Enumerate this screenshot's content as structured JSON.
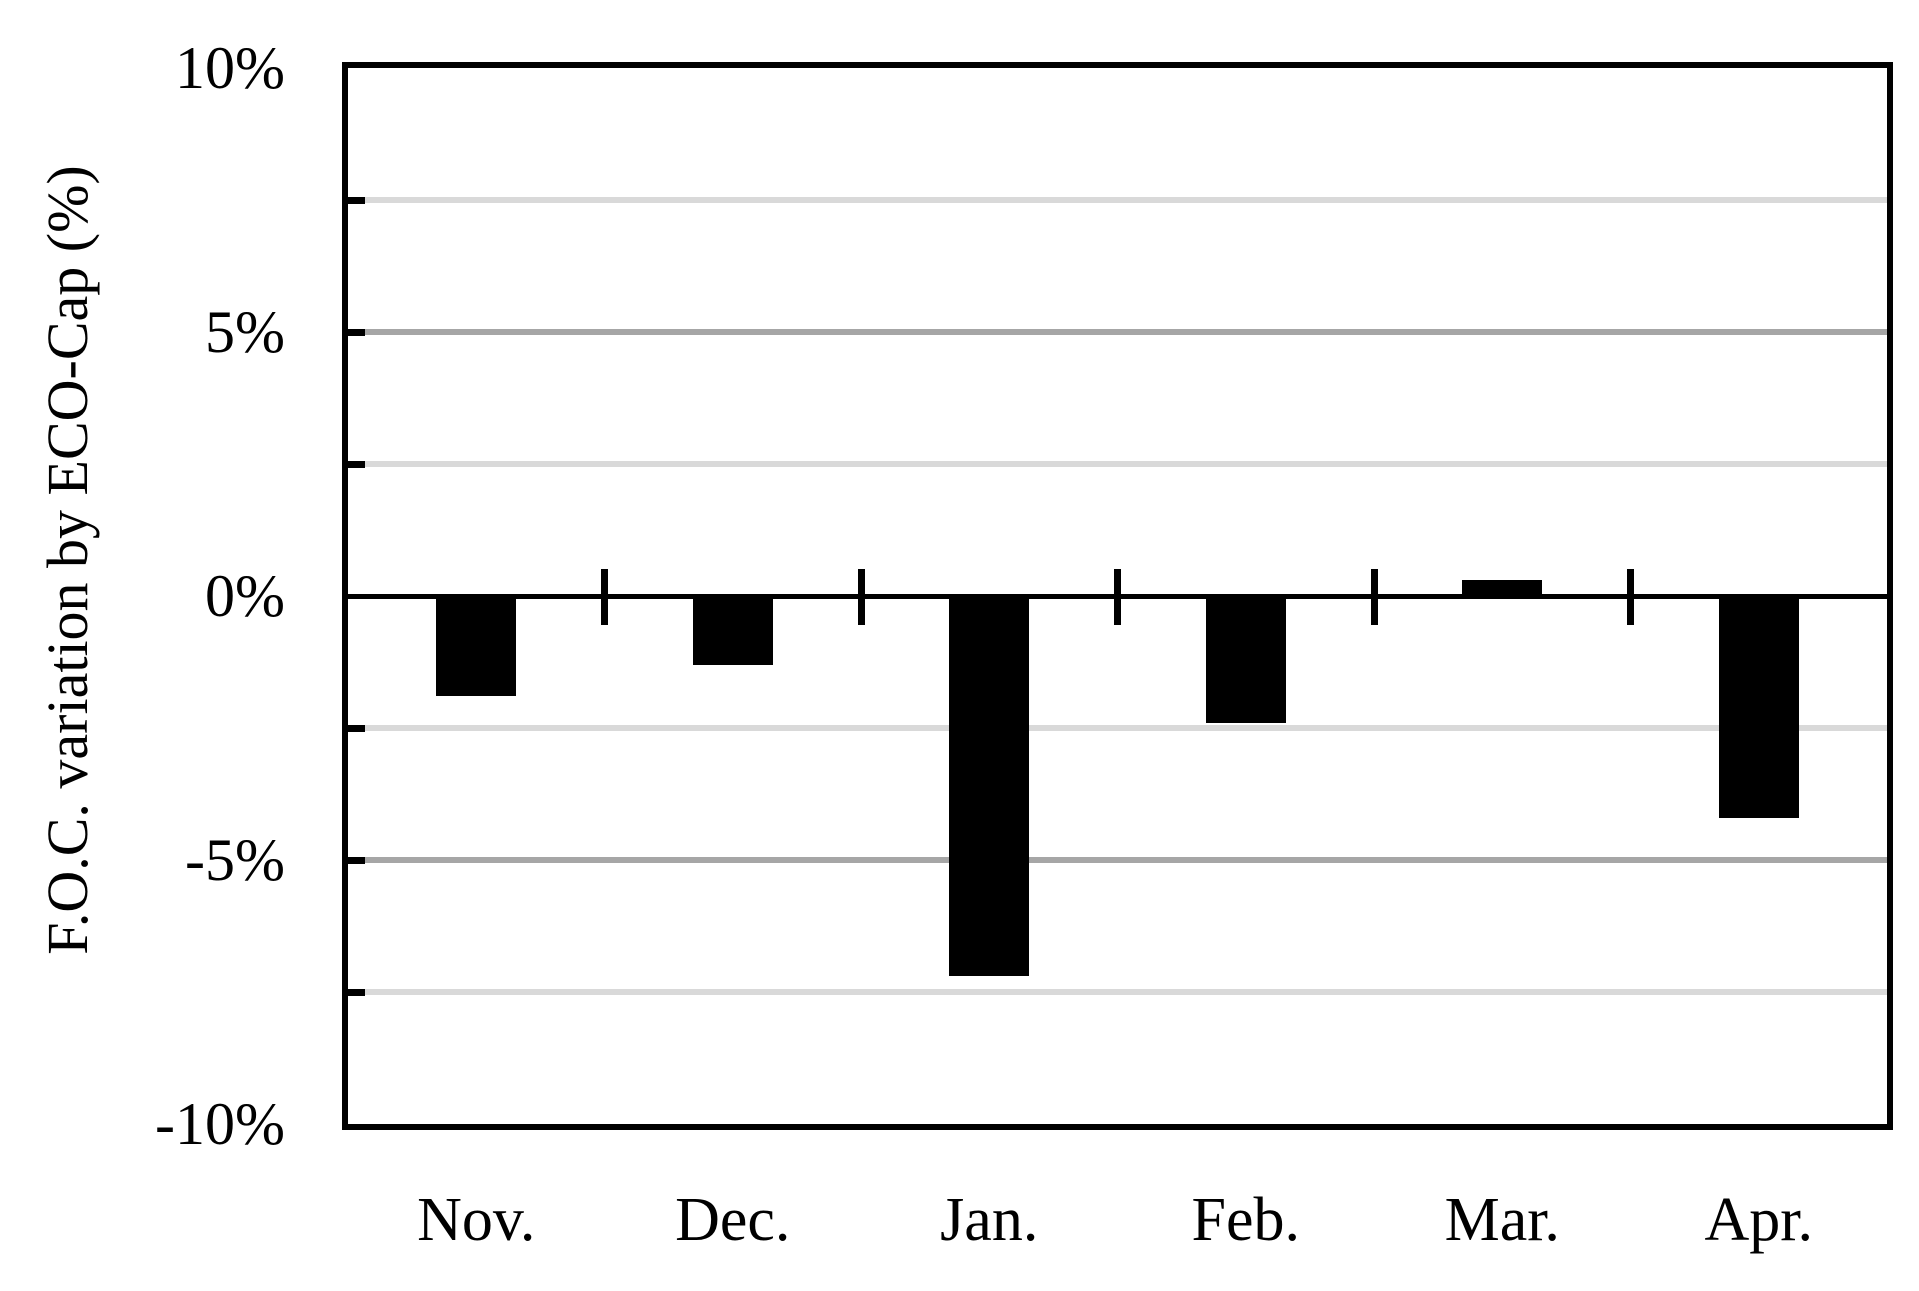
{
  "chart_data": {
    "type": "bar",
    "categories": [
      "Nov.",
      "Dec.",
      "Jan.",
      "Feb.",
      "Mar.",
      "Apr."
    ],
    "values": [
      -1.9,
      -1.3,
      -7.2,
      -2.4,
      0.3,
      -4.2
    ],
    "title": "",
    "xlabel": "",
    "ylabel": "F.O.C. variation by ECO-Cap (%)",
    "ylim": [
      -10,
      10
    ],
    "yticks": [
      {
        "value": 10,
        "label": "10%"
      },
      {
        "value": 5,
        "label": "5%"
      },
      {
        "value": 0,
        "label": "0%"
      },
      {
        "value": -5,
        "label": "-5%"
      },
      {
        "value": -10,
        "label": "-10%"
      }
    ],
    "gridlines": [
      {
        "value": 7.5,
        "weight": "minor"
      },
      {
        "value": 5,
        "weight": "major"
      },
      {
        "value": 2.5,
        "weight": "minor"
      },
      {
        "value": -2.5,
        "weight": "minor"
      },
      {
        "value": -5,
        "weight": "major"
      },
      {
        "value": -7.5,
        "weight": "minor"
      }
    ],
    "legend": null,
    "grid": true,
    "colors": {
      "bar": "#000000",
      "axis": "#000000",
      "grid_minor": "#d9d9d9",
      "grid_major": "#a6a6a6",
      "background": "#ffffff"
    }
  }
}
